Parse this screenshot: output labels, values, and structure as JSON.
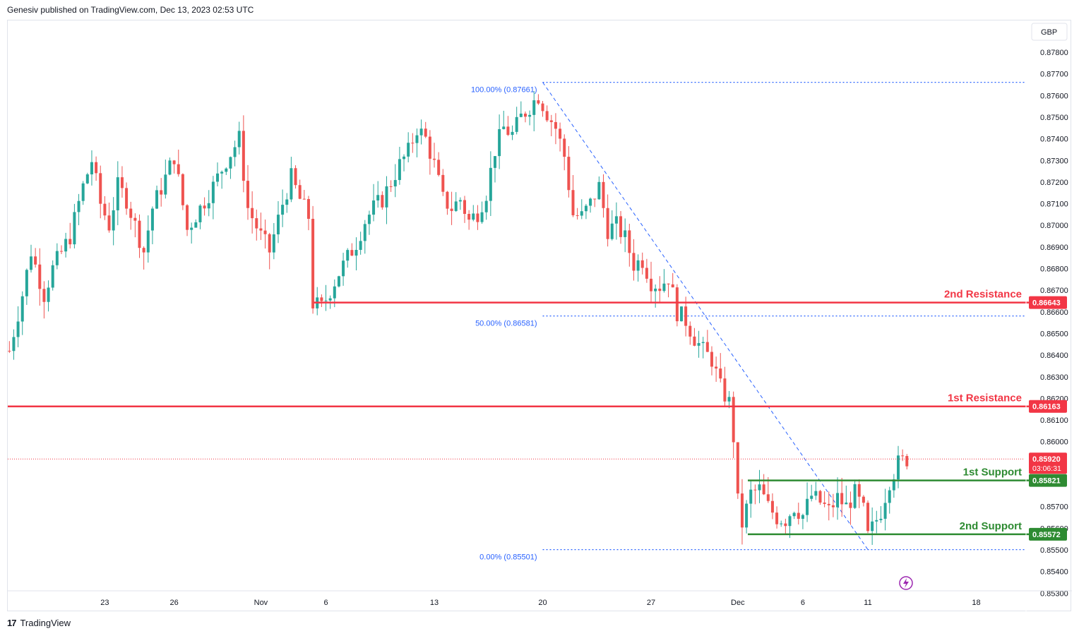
{
  "header": {
    "published": "Genesiv published on TradingView.com, Dec 13, 2023 02:53 UTC"
  },
  "footer": {
    "logo": "17",
    "brand": "TradingView"
  },
  "colors": {
    "up": "#26a69a",
    "down": "#ef5350",
    "resistance": "#f23645",
    "support": "#2e8b32",
    "fib": "#2962ff",
    "grid": "#f0f3fa",
    "price": "#f23645"
  },
  "chart_data": {
    "type": "candlestick",
    "currency": "GBP",
    "y_ticks": [
      "0.87800",
      "0.87700",
      "0.87600",
      "0.87500",
      "0.87400",
      "0.87300",
      "0.87200",
      "0.87100",
      "0.87000",
      "0.86900",
      "0.86800",
      "0.86700",
      "0.86600",
      "0.86500",
      "0.86400",
      "0.86300",
      "0.86200",
      "0.86100",
      "0.86000",
      "0.85700",
      "0.85600",
      "0.85500",
      "0.85400",
      "0.85300"
    ],
    "x_ticks": [
      {
        "label": "23",
        "bar": 22
      },
      {
        "label": "26",
        "bar": 38
      },
      {
        "label": "Nov",
        "bar": 58
      },
      {
        "label": "6",
        "bar": 73
      },
      {
        "label": "13",
        "bar": 98
      },
      {
        "label": "20",
        "bar": 123
      },
      {
        "label": "27",
        "bar": 148
      },
      {
        "label": "Dec",
        "bar": 168
      },
      {
        "label": "6",
        "bar": 183
      },
      {
        "label": "11",
        "bar": 198
      },
      {
        "label": "18",
        "bar": 223
      }
    ],
    "horizontal_levels": [
      {
        "label": "2nd Resistance",
        "value": 0.86643,
        "value_text": "0.86643",
        "kind": "resistance"
      },
      {
        "label": "1st Resistance",
        "value": 0.86163,
        "value_text": "0.86163",
        "kind": "resistance"
      },
      {
        "label": "1st Support",
        "value": 0.85821,
        "value_text": "0.85821",
        "kind": "support"
      },
      {
        "label": "2nd Support",
        "value": 0.85572,
        "value_text": "0.85572",
        "kind": "support"
      }
    ],
    "fibonacci": [
      {
        "label": "100.00% (0.87661)",
        "value": 0.87661
      },
      {
        "label": "50.00% (0.86581)",
        "value": 0.86581
      },
      {
        "label": "0.00% (0.85501)",
        "value": 0.85501
      }
    ],
    "last_price": {
      "value": 0.8592,
      "text": "0.85920",
      "countdown": "03:06:31"
    },
    "trendline": {
      "from": {
        "bar": 123,
        "price": 0.87661
      },
      "to": {
        "bar": 198,
        "price": 0.85501
      }
    },
    "anchors": [
      {
        "bar": 0,
        "price": 0.8642
      },
      {
        "bar": 3,
        "price": 0.8668
      },
      {
        "bar": 5,
        "price": 0.8688
      },
      {
        "bar": 8,
        "price": 0.8668
      },
      {
        "bar": 10,
        "price": 0.868
      },
      {
        "bar": 14,
        "price": 0.8695
      },
      {
        "bar": 17,
        "price": 0.8718
      },
      {
        "bar": 19,
        "price": 0.873
      },
      {
        "bar": 21,
        "price": 0.871
      },
      {
        "bar": 23,
        "price": 0.87
      },
      {
        "bar": 25,
        "price": 0.8718
      },
      {
        "bar": 27,
        "price": 0.8712
      },
      {
        "bar": 29,
        "price": 0.87
      },
      {
        "bar": 31,
        "price": 0.8688
      },
      {
        "bar": 33,
        "price": 0.8708
      },
      {
        "bar": 36,
        "price": 0.8722
      },
      {
        "bar": 38,
        "price": 0.8732
      },
      {
        "bar": 41,
        "price": 0.8698
      },
      {
        "bar": 44,
        "price": 0.8708
      },
      {
        "bar": 47,
        "price": 0.8718
      },
      {
        "bar": 50,
        "price": 0.873
      },
      {
        "bar": 53,
        "price": 0.874
      },
      {
        "bar": 55,
        "price": 0.8708
      },
      {
        "bar": 58,
        "price": 0.8695
      },
      {
        "bar": 60,
        "price": 0.8688
      },
      {
        "bar": 63,
        "price": 0.871
      },
      {
        "bar": 65,
        "price": 0.8722
      },
      {
        "bar": 67,
        "price": 0.8712
      },
      {
        "bar": 69,
        "price": 0.8704
      },
      {
        "bar": 70,
        "price": 0.8664
      },
      {
        "bar": 72,
        "price": 0.8662
      },
      {
        "bar": 74,
        "price": 0.867
      },
      {
        "bar": 76,
        "price": 0.8678
      },
      {
        "bar": 78,
        "price": 0.8685
      },
      {
        "bar": 80,
        "price": 0.8692
      },
      {
        "bar": 82,
        "price": 0.8702
      },
      {
        "bar": 84,
        "price": 0.8708
      },
      {
        "bar": 86,
        "price": 0.8712
      },
      {
        "bar": 88,
        "price": 0.872
      },
      {
        "bar": 90,
        "price": 0.8728
      },
      {
        "bar": 92,
        "price": 0.8734
      },
      {
        "bar": 94,
        "price": 0.8745
      },
      {
        "bar": 96,
        "price": 0.874
      },
      {
        "bar": 98,
        "price": 0.8728
      },
      {
        "bar": 100,
        "price": 0.8712
      },
      {
        "bar": 102,
        "price": 0.8708
      },
      {
        "bar": 104,
        "price": 0.8712
      },
      {
        "bar": 106,
        "price": 0.8702
      },
      {
        "bar": 108,
        "price": 0.8706
      },
      {
        "bar": 110,
        "price": 0.8715
      },
      {
        "bar": 112,
        "price": 0.8735
      },
      {
        "bar": 114,
        "price": 0.8745
      },
      {
        "bar": 116,
        "price": 0.8742
      },
      {
        "bar": 118,
        "price": 0.875
      },
      {
        "bar": 120,
        "price": 0.8755
      },
      {
        "bar": 122,
        "price": 0.876
      },
      {
        "bar": 124,
        "price": 0.8752
      },
      {
        "bar": 126,
        "price": 0.8745
      },
      {
        "bar": 128,
        "price": 0.8732
      },
      {
        "bar": 130,
        "price": 0.8705
      },
      {
        "bar": 132,
        "price": 0.8704
      },
      {
        "bar": 134,
        "price": 0.871
      },
      {
        "bar": 136,
        "price": 0.8718
      },
      {
        "bar": 138,
        "price": 0.8698
      },
      {
        "bar": 140,
        "price": 0.87
      },
      {
        "bar": 142,
        "price": 0.8694
      },
      {
        "bar": 144,
        "price": 0.8682
      },
      {
        "bar": 146,
        "price": 0.8684
      },
      {
        "bar": 148,
        "price": 0.8674
      },
      {
        "bar": 150,
        "price": 0.8672
      },
      {
        "bar": 152,
        "price": 0.8676
      },
      {
        "bar": 154,
        "price": 0.866
      },
      {
        "bar": 156,
        "price": 0.8656
      },
      {
        "bar": 158,
        "price": 0.8648
      },
      {
        "bar": 160,
        "price": 0.8642
      },
      {
        "bar": 162,
        "price": 0.8638
      },
      {
        "bar": 164,
        "price": 0.8625
      },
      {
        "bar": 166,
        "price": 0.8618
      },
      {
        "bar": 167,
        "price": 0.8602
      },
      {
        "bar": 168,
        "price": 0.8572
      },
      {
        "bar": 169,
        "price": 0.8562
      },
      {
        "bar": 171,
        "price": 0.8576
      },
      {
        "bar": 173,
        "price": 0.8578
      },
      {
        "bar": 175,
        "price": 0.857
      },
      {
        "bar": 177,
        "price": 0.8565
      },
      {
        "bar": 179,
        "price": 0.8564
      },
      {
        "bar": 181,
        "price": 0.857
      },
      {
        "bar": 183,
        "price": 0.8566
      },
      {
        "bar": 185,
        "price": 0.8575
      },
      {
        "bar": 187,
        "price": 0.8572
      },
      {
        "bar": 189,
        "price": 0.8568
      },
      {
        "bar": 191,
        "price": 0.8574
      },
      {
        "bar": 193,
        "price": 0.857
      },
      {
        "bar": 195,
        "price": 0.8576
      },
      {
        "bar": 197,
        "price": 0.8568
      },
      {
        "bar": 198,
        "price": 0.8556
      },
      {
        "bar": 199,
        "price": 0.856
      },
      {
        "bar": 201,
        "price": 0.8568
      },
      {
        "bar": 203,
        "price": 0.8582
      },
      {
        "bar": 205,
        "price": 0.859
      },
      {
        "bar": 207,
        "price": 0.8592
      }
    ]
  }
}
